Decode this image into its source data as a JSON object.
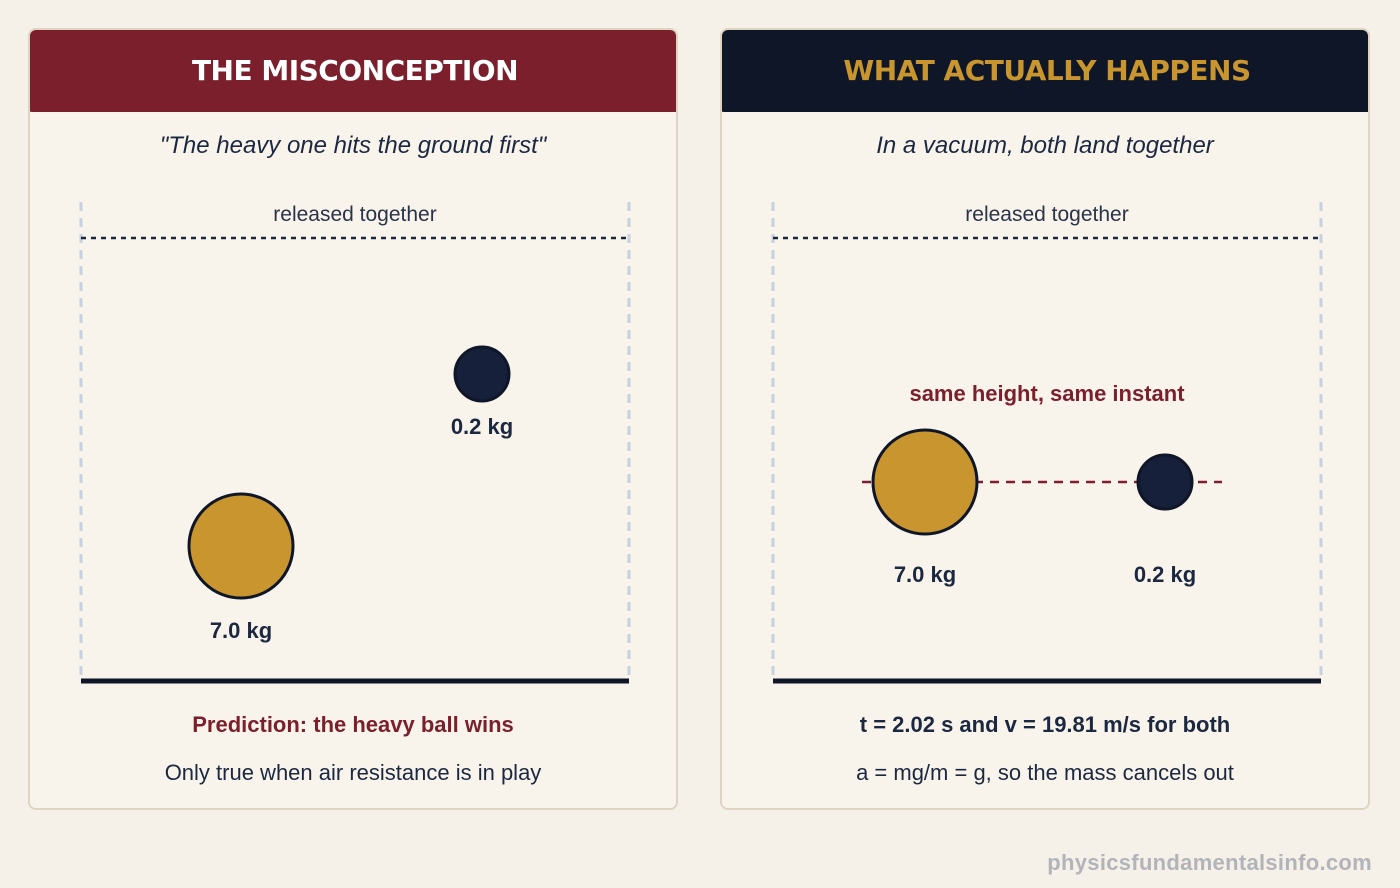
{
  "left_panel": {
    "title": "THE MISCONCEPTION",
    "subtitle": "\"The heavy one hits the ground first\"",
    "release_label": "released together",
    "heavy_ball_label": "7.0 kg",
    "light_ball_label": "0.2 kg",
    "caption": "Prediction: the heavy ball wins",
    "note": "Only true when air resistance is in play",
    "header_color": "#7a1f2b"
  },
  "right_panel": {
    "title": "WHAT ACTUALLY HAPPENS",
    "subtitle": "In a vacuum, both land together",
    "release_label": "released together",
    "annotation": "same height, same instant",
    "heavy_ball_label": "7.0 kg",
    "light_ball_label": "0.2 kg",
    "caption": "t = 2.02 s and v = 19.81 m/s for both",
    "note": "a = mg/m = g, so the mass cancels out",
    "header_color": "#0e1628",
    "title_color": "#c8952e"
  },
  "colors": {
    "heavy_ball": "#c8952e",
    "light_ball": "#16203a",
    "accent_red": "#7a1f2b"
  },
  "footer": "physicsfundamentalsinfo.com"
}
